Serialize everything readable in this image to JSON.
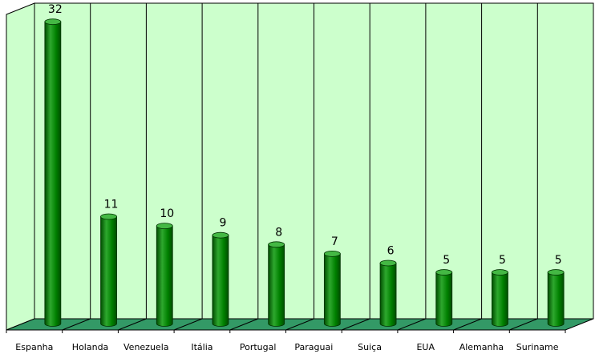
{
  "colors": {
    "plot_bg": "#ccffcc",
    "floor": "#339966",
    "bar_front": "#008000",
    "bar_light": "#2ea82e",
    "bar_dark": "#004d00",
    "bar_top": "#44b844",
    "grid": "#000000"
  },
  "chart_data": {
    "type": "bar",
    "title": "",
    "xlabel": "",
    "ylabel": "",
    "categories": [
      "Espanha",
      "Holanda",
      "Venezuela",
      "Itália",
      "Portugal",
      "Paraguai",
      "Suiça",
      "EUA",
      "Alemanha",
      "Suriname"
    ],
    "values": [
      32,
      11,
      10,
      9,
      8,
      7,
      6,
      5,
      5,
      5
    ],
    "data_labels": [
      "32",
      "11",
      "10",
      "9",
      "8",
      "7",
      "6",
      "5",
      "5",
      "5"
    ],
    "ylim": [
      0,
      34
    ],
    "grid": "vertical lines between categories",
    "legend": "none",
    "style": "3d-cylinder"
  }
}
